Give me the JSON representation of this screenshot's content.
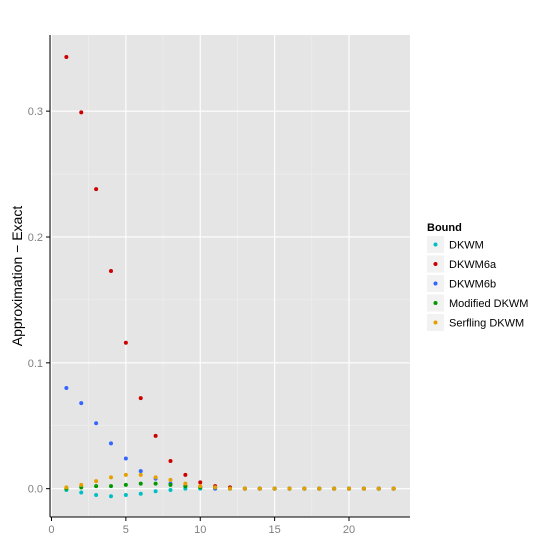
{
  "chart_data": {
    "type": "scatter",
    "title": "",
    "xlabel": "",
    "ylabel": "Approximation − Exact",
    "xlim": [
      -0.1,
      24.1
    ],
    "ylim": [
      -0.0225,
      0.3605
    ],
    "x_ticks": [
      0,
      5,
      10,
      15,
      20
    ],
    "y_ticks": [
      0.0,
      0.1,
      0.2,
      0.3
    ],
    "x_tick_labels": [
      "0",
      "5",
      "10",
      "15",
      "20"
    ],
    "y_tick_labels": [
      "0.0",
      "0.1",
      "0.2",
      "0.3"
    ],
    "grid": true,
    "panel_background": "#e5e5e5",
    "legend": {
      "title": "Bound",
      "position": "right"
    },
    "series": [
      {
        "name": "DKWM",
        "color": "#00bfc4",
        "x": [
          1,
          2,
          3,
          4,
          5,
          6,
          7,
          8,
          9,
          10,
          11,
          12,
          13,
          14,
          15,
          16,
          17,
          18,
          19,
          20,
          21,
          22,
          23
        ],
        "y": [
          -0.001,
          -0.003,
          -0.005,
          -0.006,
          -0.005,
          -0.004,
          -0.002,
          -0.001,
          0.0,
          0.0,
          0.0,
          0.0,
          0.0,
          0.0,
          0.0,
          0.0,
          0.0,
          0.0,
          0.0,
          0.0,
          0.0,
          0.0,
          0.0
        ]
      },
      {
        "name": "DKWM6a",
        "color": "#cc0000",
        "x": [
          1,
          2,
          3,
          4,
          5,
          6,
          7,
          8,
          9,
          10,
          11,
          12,
          13,
          14,
          15,
          16,
          17,
          18,
          19,
          20,
          21,
          22,
          23
        ],
        "y": [
          0.343,
          0.299,
          0.238,
          0.173,
          0.116,
          0.072,
          0.042,
          0.022,
          0.011,
          0.005,
          0.002,
          0.001,
          0.0,
          0.0,
          0.0,
          0.0,
          0.0,
          0.0,
          0.0,
          0.0,
          0.0,
          0.0,
          0.0
        ]
      },
      {
        "name": "DKWM6b",
        "color": "#3366ff",
        "x": [
          1,
          2,
          3,
          4,
          5,
          6,
          7,
          8,
          9,
          10,
          11,
          12,
          13,
          14,
          15,
          16,
          17,
          18,
          19,
          20,
          21,
          22,
          23
        ],
        "y": [
          0.08,
          0.068,
          0.052,
          0.036,
          0.024,
          0.014,
          0.008,
          0.004,
          0.002,
          0.001,
          0.0,
          0.0,
          0.0,
          0.0,
          0.0,
          0.0,
          0.0,
          0.0,
          0.0,
          0.0,
          0.0,
          0.0,
          0.0
        ]
      },
      {
        "name": "Modified DKWM",
        "color": "#009900",
        "x": [
          1,
          2,
          3,
          4,
          5,
          6,
          7,
          8,
          9,
          10,
          11,
          12,
          13,
          14,
          15,
          16,
          17,
          18,
          19,
          20,
          21,
          22,
          23
        ],
        "y": [
          0.0,
          0.001,
          0.002,
          0.002,
          0.003,
          0.004,
          0.004,
          0.003,
          0.002,
          0.001,
          0.001,
          0.0,
          0.0,
          0.0,
          0.0,
          0.0,
          0.0,
          0.0,
          0.0,
          0.0,
          0.0,
          0.0,
          0.0
        ]
      },
      {
        "name": "Serfling DKWM",
        "color": "#e69f00",
        "x": [
          1,
          2,
          3,
          4,
          5,
          6,
          7,
          8,
          9,
          10,
          11,
          12,
          13,
          14,
          15,
          16,
          17,
          18,
          19,
          20,
          21,
          22,
          23
        ],
        "y": [
          0.001,
          0.003,
          0.006,
          0.009,
          0.011,
          0.011,
          0.009,
          0.007,
          0.004,
          0.002,
          0.001,
          0.0,
          0.0,
          0.0,
          0.0,
          0.0,
          0.0,
          0.0,
          0.0,
          0.0,
          0.0,
          0.0,
          0.0
        ]
      }
    ]
  }
}
